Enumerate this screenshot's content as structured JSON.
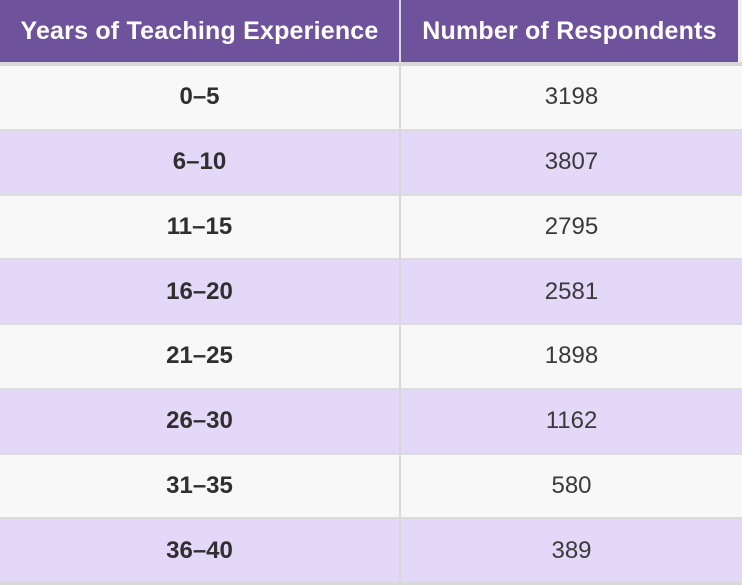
{
  "table": {
    "columns": [
      {
        "label": "Years of Teaching Experience"
      },
      {
        "label": "Number of Respondents"
      }
    ],
    "rows": [
      {
        "experience": "0–5",
        "respondents": "3198"
      },
      {
        "experience": "6–10",
        "respondents": "3807"
      },
      {
        "experience": "11–15",
        "respondents": "2795"
      },
      {
        "experience": "16–20",
        "respondents": "2581"
      },
      {
        "experience": "21–25",
        "respondents": "1898"
      },
      {
        "experience": "26–30",
        "respondents": "1162"
      },
      {
        "experience": "31–35",
        "respondents": "580"
      },
      {
        "experience": "36–40",
        "respondents": "389"
      }
    ]
  },
  "colors": {
    "header_background": "#6e529c",
    "header_text": "#ffffff",
    "row_even_background": "#f8f8f8",
    "row_odd_background": "#e4d8f8",
    "divider": "#d8d8d8",
    "body_text": "#333333"
  },
  "chart_data": {
    "type": "table",
    "title": "",
    "columns": [
      "Years of Teaching Experience",
      "Number of Respondents"
    ],
    "categories": [
      "0–5",
      "6–10",
      "11–15",
      "16–20",
      "21–25",
      "26–30",
      "31–35",
      "36–40"
    ],
    "values": [
      3198,
      3807,
      2795,
      2581,
      1898,
      1162,
      580,
      389
    ]
  }
}
